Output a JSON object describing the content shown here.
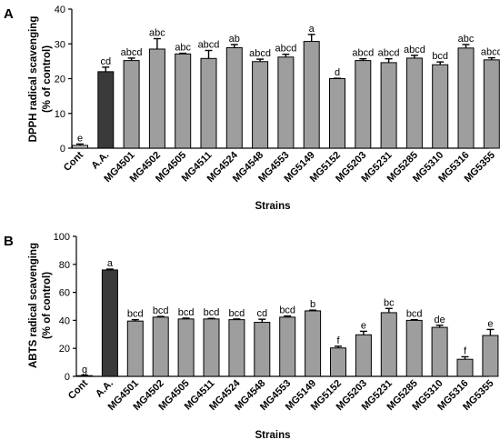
{
  "chart_data": [
    {
      "panel_label": "A",
      "type": "bar",
      "categories": [
        "Cont",
        "A.A.",
        "MG4501",
        "MG4502",
        "MG4505",
        "MG4511",
        "MG4524",
        "MG4548",
        "MG4553",
        "MG5149",
        "MG5152",
        "MG5203",
        "MG5231",
        "MG5285",
        "MG5310",
        "MG5316",
        "MG5355"
      ],
      "values": [
        0.8,
        22.0,
        25.2,
        28.5,
        27.1,
        25.8,
        28.9,
        24.9,
        26.2,
        30.7,
        20.0,
        25.2,
        24.6,
        25.9,
        24.0,
        28.8,
        25.4
      ],
      "errors": [
        0.4,
        1.3,
        0.7,
        3.0,
        0.2,
        2.3,
        0.9,
        0.7,
        0.8,
        2.0,
        0.1,
        0.5,
        1.1,
        0.8,
        0.8,
        1.0,
        0.6
      ],
      "letters": [
        "e",
        "cd",
        "abcd",
        "abc",
        "abc",
        "abcd",
        "ab",
        "abcd",
        "abcd",
        "a",
        "d",
        "abcd",
        "abcd",
        "abcd",
        "bcd",
        "abc",
        "abcd"
      ],
      "bar_colors": [
        "#c6c6c6",
        "#3a3a3a",
        "#9e9e9e",
        "#9e9e9e",
        "#9e9e9e",
        "#9e9e9e",
        "#9e9e9e",
        "#9e9e9e",
        "#9e9e9e",
        "#9e9e9e",
        "#9e9e9e",
        "#9e9e9e",
        "#9e9e9e",
        "#9e9e9e",
        "#9e9e9e",
        "#9e9e9e",
        "#9e9e9e"
      ],
      "ylim": [
        0,
        40
      ],
      "yticks": [
        "0",
        "10",
        "20",
        "30",
        "40"
      ],
      "ylabel": [
        "DPPH radical scavenging",
        "(% of control)"
      ],
      "xlabel": "Strains"
    },
    {
      "panel_label": "B",
      "type": "bar",
      "categories": [
        "Cont",
        "A.A.",
        "MG4501",
        "MG4502",
        "MG4505",
        "MG4511",
        "MG4524",
        "MG4548",
        "MG4553",
        "MG5149",
        "MG5152",
        "MG5203",
        "MG5231",
        "MG5285",
        "MG5310",
        "MG5316",
        "MG5355"
      ],
      "values": [
        0.5,
        76.0,
        39.5,
        42.3,
        41.0,
        41.0,
        40.5,
        38.6,
        42.3,
        46.8,
        20.3,
        29.7,
        45.5,
        40.0,
        35.0,
        12.2,
        29.2
      ],
      "errors": [
        0.3,
        0.6,
        1.0,
        0.5,
        0.6,
        0.4,
        0.5,
        2.2,
        0.8,
        0.5,
        1.2,
        2.5,
        3.0,
        0.5,
        1.5,
        1.8,
        4.3
      ],
      "letters": [
        "g",
        "a",
        "bcd",
        "bcd",
        "bcd",
        "bcd",
        "bcd",
        "cd",
        "bcd",
        "b",
        "f",
        "e",
        "bc",
        "bcd",
        "de",
        "f",
        "e"
      ],
      "bar_colors": [
        "#c6c6c6",
        "#3a3a3a",
        "#9e9e9e",
        "#9e9e9e",
        "#9e9e9e",
        "#9e9e9e",
        "#9e9e9e",
        "#9e9e9e",
        "#9e9e9e",
        "#9e9e9e",
        "#9e9e9e",
        "#9e9e9e",
        "#9e9e9e",
        "#9e9e9e",
        "#9e9e9e",
        "#9e9e9e",
        "#9e9e9e"
      ],
      "ylim": [
        0,
        100
      ],
      "yticks": [
        "0",
        "20",
        "40",
        "60",
        "80",
        "100"
      ],
      "ylabel": [
        "ABTS radical scavenging",
        "(% of control)"
      ],
      "xlabel": "Strains"
    }
  ]
}
